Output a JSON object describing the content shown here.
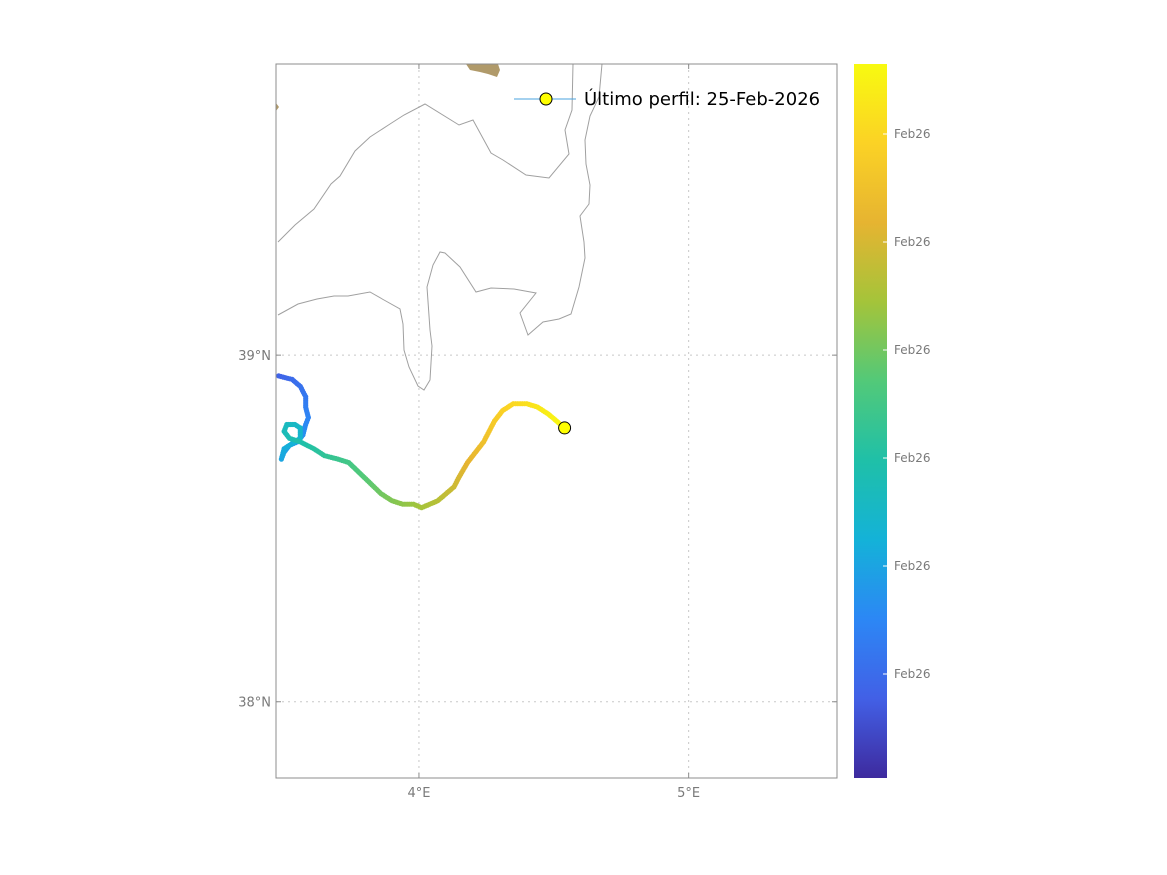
{
  "map": {
    "x_range_deg_e": [
      3.47,
      5.55
    ],
    "y_range_deg_n": [
      37.78,
      39.84
    ],
    "x_ticks": [
      {
        "value": 4,
        "label": "4°E"
      },
      {
        "value": 5,
        "label": "5°E"
      }
    ],
    "y_ticks": [
      {
        "value": 39,
        "label": "39°N"
      },
      {
        "value": 38,
        "label": "38°N"
      }
    ],
    "grid": "dotted",
    "land_color": "#b09a6a",
    "contour_color": "#a0a0a0"
  },
  "legend": {
    "label": "Último perfil: 25-Feb-2026",
    "placement": "top-right",
    "marker_fill": "#ffff00",
    "line_color": "#4aa3df"
  },
  "colorbar": {
    "labels": [
      "Feb26",
      "Feb26",
      "Feb26",
      "Feb26",
      "Feb26",
      "Feb26"
    ],
    "colors": [
      "#3e2a9e",
      "#4260e6",
      "#2c87f5",
      "#14b2d8",
      "#1fc0a8",
      "#52c979",
      "#a4c43a",
      "#e6b431",
      "#fbd225",
      "#f8fa10"
    ]
  },
  "track": {
    "last_profile": {
      "lon": 4.54,
      "lat": 38.79,
      "color": "#ffff00"
    },
    "points": [
      [
        3.48,
        38.94
      ],
      [
        3.53,
        38.93
      ],
      [
        3.56,
        38.91
      ],
      [
        3.58,
        38.88
      ],
      [
        3.58,
        38.85
      ],
      [
        3.59,
        38.82
      ],
      [
        3.58,
        38.8
      ],
      [
        3.57,
        38.77
      ],
      [
        3.55,
        38.75
      ],
      [
        3.52,
        38.74
      ],
      [
        3.5,
        38.72
      ],
      [
        3.49,
        38.7
      ],
      [
        3.5,
        38.73
      ],
      [
        3.54,
        38.75
      ],
      [
        3.56,
        38.76
      ],
      [
        3.56,
        38.79
      ],
      [
        3.54,
        38.8
      ],
      [
        3.51,
        38.8
      ],
      [
        3.5,
        38.78
      ],
      [
        3.52,
        38.76
      ],
      [
        3.56,
        38.75
      ],
      [
        3.61,
        38.73
      ],
      [
        3.65,
        38.71
      ],
      [
        3.7,
        38.7
      ],
      [
        3.74,
        38.69
      ],
      [
        3.78,
        38.66
      ],
      [
        3.82,
        38.63
      ],
      [
        3.86,
        38.6
      ],
      [
        3.9,
        38.58
      ],
      [
        3.94,
        38.57
      ],
      [
        3.98,
        38.57
      ],
      [
        4.01,
        38.56
      ],
      [
        4.04,
        38.57
      ],
      [
        4.07,
        38.58
      ],
      [
        4.1,
        38.6
      ],
      [
        4.13,
        38.62
      ],
      [
        4.15,
        38.65
      ],
      [
        4.18,
        38.69
      ],
      [
        4.21,
        38.72
      ],
      [
        4.24,
        38.75
      ],
      [
        4.26,
        38.78
      ],
      [
        4.28,
        38.81
      ],
      [
        4.31,
        38.84
      ],
      [
        4.35,
        38.86
      ],
      [
        4.4,
        38.86
      ],
      [
        4.44,
        38.85
      ],
      [
        4.48,
        38.83
      ],
      [
        4.51,
        38.81
      ],
      [
        4.54,
        38.79
      ]
    ]
  }
}
